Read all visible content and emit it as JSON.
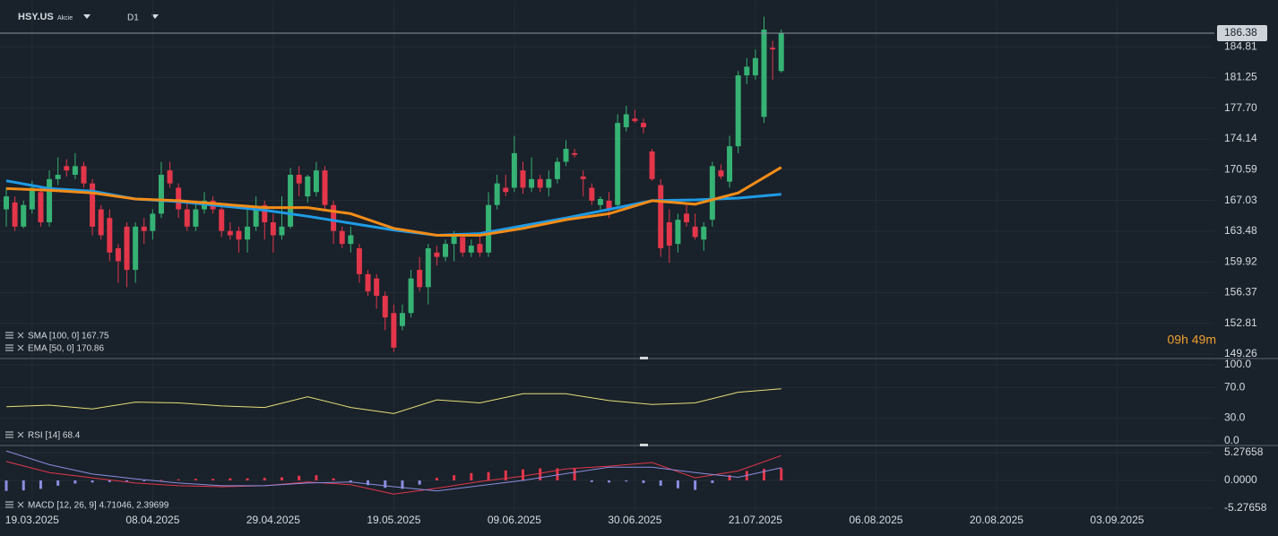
{
  "header": {
    "symbol": "HSY.US",
    "kind": "Akcie",
    "timeframe": "D1"
  },
  "chart_data": [
    {
      "type": "candlestick",
      "up_color": "#35b274",
      "down_color": "#e3364b",
      "xlim": [
        -0.73,
        140.3
      ],
      "ylim": [
        148.74,
        190.22
      ],
      "yticks": [
        {
          "value": 184.81,
          "label": "184.81"
        },
        181.25,
        {
          "value": 177.7,
          "label": "177.70"
        },
        174.14,
        170.59,
        167.03,
        163.48,
        159.92,
        156.37,
        152.81,
        149.26
      ],
      "current_price": 186.38,
      "countdown": "09h 49m",
      "grid": true,
      "candles": [
        [
          166,
          168.5,
          164,
          167.5
        ],
        [
          166.8,
          167.5,
          163.5,
          164
        ],
        [
          164,
          167,
          163.8,
          166.5
        ],
        [
          166,
          169.3,
          165.5,
          168.5
        ],
        [
          168,
          168.5,
          164,
          164.5
        ],
        [
          164.5,
          170.5,
          164,
          169.5
        ],
        [
          169.5,
          172,
          168.8,
          170
        ],
        [
          171,
          171.8,
          169.8,
          170.5
        ],
        [
          170,
          172.5,
          169.5,
          171
        ],
        [
          171,
          171.5,
          168.5,
          169
        ],
        [
          169,
          169.5,
          163,
          164
        ],
        [
          166,
          166.5,
          162.5,
          163
        ],
        [
          165,
          166,
          160,
          161
        ],
        [
          161.5,
          162,
          157.5,
          160
        ],
        [
          164,
          164.5,
          157,
          159
        ],
        [
          159,
          164.5,
          157.5,
          164
        ],
        [
          164,
          165,
          162,
          163.5
        ],
        [
          163.5,
          166,
          162.5,
          165.5
        ],
        [
          165.5,
          171.5,
          165,
          170
        ],
        [
          170.5,
          171.5,
          168.5,
          169
        ],
        [
          168.5,
          169,
          165,
          166
        ],
        [
          166,
          166.8,
          163.5,
          164
        ],
        [
          164,
          167,
          163.5,
          166
        ],
        [
          166,
          168,
          165.5,
          167
        ],
        [
          167,
          167.5,
          165.5,
          166
        ],
        [
          166,
          166.5,
          162.8,
          163.5
        ],
        [
          163.5,
          164.5,
          162.5,
          163
        ],
        [
          163.5,
          164,
          161,
          162.5
        ],
        [
          162.5,
          166.5,
          161,
          164
        ],
        [
          164,
          167.5,
          163.5,
          166
        ],
        [
          166.5,
          167,
          162.5,
          164.5
        ],
        [
          164.5,
          165.5,
          161,
          163
        ],
        [
          163,
          167.5,
          162.5,
          164
        ],
        [
          164,
          170.8,
          163.8,
          170
        ],
        [
          170,
          171,
          167.5,
          169
        ],
        [
          167.5,
          170,
          166.8,
          169.8
        ],
        [
          168,
          171.5,
          167.5,
          170.5
        ],
        [
          170.5,
          171,
          166,
          166.5
        ],
        [
          166.5,
          167,
          162,
          163.5
        ],
        [
          163.5,
          164,
          161.5,
          162
        ],
        [
          162,
          164,
          161,
          163
        ],
        [
          161.5,
          162,
          157.5,
          158.5
        ],
        [
          158.5,
          159,
          156,
          156.5
        ],
        [
          158,
          158.5,
          154.5,
          156
        ],
        [
          156,
          156.5,
          152,
          153.5
        ],
        [
          154,
          155,
          149.5,
          150
        ],
        [
          152.5,
          155,
          152,
          154
        ],
        [
          154,
          159,
          153.5,
          158
        ],
        [
          159,
          160.5,
          156.5,
          157
        ],
        [
          157,
          162,
          155,
          161.5
        ],
        [
          161,
          161.8,
          159.5,
          160.5
        ],
        [
          160.5,
          162.5,
          160,
          162
        ],
        [
          162,
          163.5,
          160,
          163
        ],
        [
          162.8,
          163,
          160.5,
          161
        ],
        [
          161,
          162.5,
          160.5,
          161.8
        ],
        [
          162,
          163,
          160.5,
          161
        ],
        [
          161,
          168,
          160.5,
          166.5
        ],
        [
          166.5,
          170,
          166,
          169
        ],
        [
          168.5,
          170,
          167.5,
          168
        ],
        [
          168.5,
          174.5,
          168,
          172.5
        ],
        [
          170.5,
          171.5,
          167.8,
          168.5
        ],
        [
          168.5,
          172,
          168,
          169.5
        ],
        [
          169.5,
          170,
          168,
          168.5
        ],
        [
          168.5,
          170.5,
          167.5,
          169.5
        ],
        [
          169.5,
          172,
          169,
          171.5
        ],
        [
          171.5,
          174,
          171,
          173
        ],
        [
          172.5,
          173,
          172,
          172.3
        ],
        [
          169.8,
          170.5,
          167.5,
          169.5
        ],
        [
          168.5,
          169,
          166.5,
          167
        ],
        [
          166.5,
          167.5,
          166,
          167.2
        ],
        [
          167,
          168,
          165,
          166
        ],
        [
          166.5,
          177,
          166,
          176
        ],
        [
          175.5,
          178,
          175,
          177
        ],
        [
          176.5,
          177.5,
          176,
          176.2
        ],
        [
          176,
          176.5,
          174.8,
          175.5
        ],
        [
          172.7,
          173,
          169.3,
          169.5
        ],
        [
          168.8,
          169.5,
          160.5,
          161.5
        ],
        [
          164.5,
          166,
          159.8,
          161.8
        ],
        [
          162,
          165.5,
          161,
          164.8
        ],
        [
          165.5,
          166.5,
          164,
          164.5
        ],
        [
          164,
          165.5,
          162.5,
          162.8
        ],
        [
          162.5,
          164.5,
          161.2,
          164
        ],
        [
          164.8,
          171.5,
          164,
          171
        ],
        [
          170.5,
          171.2,
          169.5,
          169.8
        ],
        [
          169.2,
          174.5,
          168.5,
          173.3
        ],
        [
          173.3,
          182,
          172.5,
          181.5
        ],
        [
          181.5,
          183.5,
          180.5,
          182.5
        ],
        [
          181.5,
          184.5,
          181,
          183.5
        ],
        [
          176.7,
          188.3,
          176,
          186.8
        ],
        [
          184.7,
          185.5,
          181,
          184.5
        ],
        [
          182,
          186.8,
          181.8,
          186.38
        ]
      ],
      "indicators": [
        {
          "legend": "SMA [100, 0] 167.75",
          "color": "#1e9be6",
          "x": [
            0,
            5,
            10,
            15,
            20,
            25,
            30,
            35,
            40,
            45,
            50,
            55,
            60,
            65,
            70,
            75,
            80,
            85,
            90
          ],
          "values": [
            169.3,
            168.4,
            168.1,
            167.2,
            166.9,
            166.4,
            165.9,
            165.2,
            164.4,
            163.6,
            163.0,
            163.2,
            164.1,
            165.0,
            166.0,
            167.0,
            167.1,
            167.3,
            167.75
          ]
        },
        {
          "legend": "EMA [50, 0] 170.86",
          "color": "#f28c18",
          "x": [
            0,
            5,
            10,
            15,
            20,
            25,
            30,
            35,
            40,
            45,
            50,
            55,
            60,
            65,
            70,
            75,
            80,
            85,
            90
          ],
          "values": [
            168.4,
            168.2,
            167.9,
            167.2,
            167.0,
            166.6,
            166.2,
            166.2,
            165.5,
            163.8,
            163.0,
            163.0,
            163.8,
            164.8,
            165.5,
            167.0,
            166.6,
            167.9,
            170.86
          ]
        }
      ]
    },
    {
      "type": "line",
      "xlim": [
        -0.73,
        140.3
      ],
      "ylim": [
        -5.9,
        108.2
      ],
      "yticks": [
        {
          "value": 100,
          "label": "100.0"
        },
        {
          "value": 70,
          "label": "70.0"
        },
        {
          "value": 30,
          "label": "30.0"
        },
        {
          "value": 0,
          "label": "0.0"
        }
      ],
      "indicators": [
        {
          "legend": "RSI [14] 68.4",
          "color": "#e6df78",
          "x": [
            0,
            5,
            10,
            15,
            20,
            25,
            30,
            35,
            40,
            45,
            50,
            55,
            60,
            65,
            70,
            75,
            80,
            85,
            90
          ],
          "values": [
            45,
            47,
            42,
            51,
            50,
            46,
            44,
            58,
            44,
            36,
            54,
            50,
            62,
            62,
            53,
            48,
            50,
            64,
            68.4
          ]
        }
      ]
    },
    {
      "type": "macd",
      "xlim": [
        -0.73,
        140.3
      ],
      "ylim": [
        -6.13,
        6.64
      ],
      "yticks": [
        5.27658,
        {
          "value": 0,
          "label": "0.0000"
        },
        -5.27658
      ],
      "xticks": [
        {
          "value": 3,
          "label": "19.03.2025"
        },
        {
          "value": 17,
          "label": "08.04.2025"
        },
        {
          "value": 31,
          "label": "29.04.2025"
        },
        {
          "value": 45,
          "label": "19.05.2025"
        },
        {
          "value": 59,
          "label": "09.06.2025"
        },
        {
          "value": 73,
          "label": "30.06.2025"
        },
        {
          "value": 87,
          "label": "21.07.2025"
        },
        {
          "value": 101,
          "label": "06.08.2025"
        },
        {
          "value": 115,
          "label": "20.08.2025"
        },
        {
          "value": 129,
          "label": "03.09.2025"
        }
      ],
      "legend": "MACD [12, 26, 9] 4.71046, 2.39699",
      "lines": [
        {
          "color": "#e3364b",
          "x": [
            0,
            5,
            10,
            15,
            20,
            25,
            30,
            35,
            40,
            45,
            50,
            55,
            60,
            65,
            70,
            75,
            80,
            85,
            90
          ],
          "values": [
            3.6,
            1.5,
            0.5,
            -0.5,
            -1.0,
            -1.2,
            -1.0,
            -0.3,
            -0.8,
            -2.6,
            -1.5,
            -0.2,
            0.8,
            2.2,
            2.7,
            3.4,
            0.5,
            1.8,
            4.71046
          ]
        },
        {
          "color": "#8a8ee0",
          "x": [
            0,
            5,
            10,
            15,
            20,
            25,
            30,
            35,
            40,
            45,
            50,
            55,
            60,
            65,
            70,
            75,
            80,
            85,
            90
          ],
          "values": [
            5.6,
            3.0,
            1.2,
            0.3,
            -0.5,
            -1.0,
            -1.0,
            -0.5,
            -0.3,
            -1.2,
            -2.0,
            -1.0,
            0.0,
            1.3,
            2.5,
            2.5,
            1.5,
            0.6,
            2.39699
          ]
        }
      ],
      "histogram": {
        "pos_color": "#e3364b",
        "neg_color": "#8a8ee0",
        "x": [
          0,
          2,
          4,
          6,
          8,
          10,
          12,
          14,
          16,
          18,
          20,
          22,
          24,
          26,
          28,
          30,
          32,
          34,
          36,
          38,
          40,
          42,
          44,
          46,
          48,
          50,
          52,
          54,
          56,
          58,
          60,
          62,
          64,
          66,
          68,
          70,
          72,
          74,
          76,
          78,
          80,
          82,
          84,
          86,
          88,
          90
        ],
        "values": [
          -2.0,
          -1.9,
          -1.6,
          -1.0,
          -0.6,
          -0.4,
          -0.3,
          -0.2,
          -0.1,
          0.1,
          0.2,
          0.3,
          0.3,
          0.4,
          0.4,
          0.5,
          0.6,
          0.9,
          1.0,
          0.4,
          -0.4,
          -0.9,
          -1.4,
          -1.6,
          -0.8,
          0.5,
          1.0,
          1.4,
          1.6,
          1.9,
          2.1,
          2.3,
          2.3,
          2.2,
          -0.3,
          -0.4,
          -0.2,
          -0.5,
          -1.0,
          -1.5,
          -1.8,
          -0.5,
          1.0,
          1.8,
          2.2,
          2.31
        ]
      }
    }
  ]
}
